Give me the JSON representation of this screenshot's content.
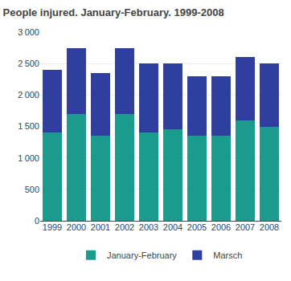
{
  "chart_data": {
    "type": "bar",
    "title": "People injured. January-February. 1999-2008",
    "categories": [
      "1999",
      "2000",
      "2001",
      "2002",
      "2003",
      "2004",
      "2005",
      "2006",
      "2007",
      "2008"
    ],
    "series": [
      {
        "name": "January-February",
        "color": "#1a9b8e",
        "values": [
          1400,
          1700,
          1350,
          1700,
          1400,
          1450,
          1350,
          1350,
          1600,
          1500
        ]
      },
      {
        "name": "Marsch",
        "color": "#2e3fa0",
        "values": [
          1000,
          1050,
          1000,
          1050,
          1100,
          1050,
          950,
          950,
          1000,
          1000
        ]
      }
    ],
    "stacked": true,
    "ylim": [
      0,
      3000
    ],
    "yticks": [
      0,
      500,
      {
        "value": 1000,
        "label": "1 000"
      },
      {
        "value": 1500,
        "label": "1 500"
      },
      {
        "value": 2000,
        "label": "2 000"
      },
      {
        "value": 2500,
        "label": "2 500"
      },
      {
        "value": 3000,
        "label": "3 000"
      }
    ],
    "grid": true,
    "legend": "bottom"
  }
}
